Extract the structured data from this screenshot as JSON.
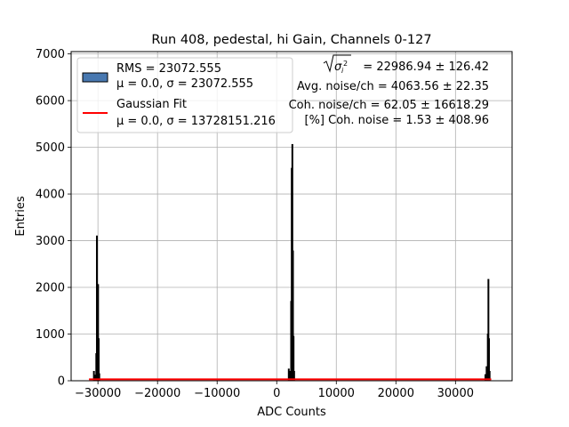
{
  "chart_data": {
    "type": "bar",
    "title": "Run 408, pedestal, hi Gain, Channels 0-127",
    "xlabel": "ADC Counts",
    "ylabel": "Entries",
    "xlim": [
      -34500,
      39500
    ],
    "ylim": [
      0,
      7050
    ],
    "grid": true,
    "legend_position": "top-left",
    "x_ticks": [
      -30000,
      -20000,
      -10000,
      0,
      10000,
      20000,
      30000
    ],
    "x_tick_labels": [
      "−30000",
      "−20000",
      "−10000",
      "0",
      "10000",
      "20000",
      "30000"
    ],
    "y_ticks": [
      0,
      1000,
      2000,
      3000,
      4000,
      5000,
      6000,
      7000
    ],
    "y_tick_labels": [
      "0",
      "1000",
      "2000",
      "3000",
      "4000",
      "5000",
      "6000",
      "7000"
    ],
    "legend": [
      {
        "kind": "patch",
        "line1": "RMS = 23072.555",
        "line2": "μ = 0.0, σ = 23072.555",
        "color": "#4878b0"
      },
      {
        "kind": "line",
        "line1": "Gaussian Fit",
        "line2": "μ = 0.0, σ = 13728151.216",
        "color": "#ff0000"
      }
    ],
    "annotations": {
      "sqrt_value": "= 22986.94 ± 126.42",
      "avg_noise": "Avg. noise/ch = 4063.56 ± 22.35",
      "coh_noise": "Coh. noise/ch = 62.05 ± 16618.29",
      "coh_pct": "[%] Coh. noise = 1.53 ± 408.96"
    },
    "series": [
      {
        "name": "RMS = 23072.555",
        "color": "#4878b0",
        "edge_color": "#000000",
        "x": [
          -30700,
          -30500,
          -30300,
          -30200,
          -30100,
          -30000,
          -29900,
          -29800,
          2000,
          2200,
          2400,
          2500,
          2600,
          2700,
          2800,
          2900,
          35000,
          35200,
          35400,
          35500,
          35600,
          35700
        ],
        "values": [
          200,
          120,
          580,
          3100,
          1800,
          2060,
          900,
          150,
          250,
          200,
          1700,
          4550,
          5060,
          2780,
          950,
          200,
          130,
          300,
          1000,
          2170,
          900,
          200
        ],
        "bin_width": 100
      },
      {
        "name": "Gaussian Fit",
        "type": "line",
        "color": "#ff0000",
        "x": [
          -31500,
          36000
        ],
        "values": [
          30,
          30
        ]
      }
    ]
  }
}
